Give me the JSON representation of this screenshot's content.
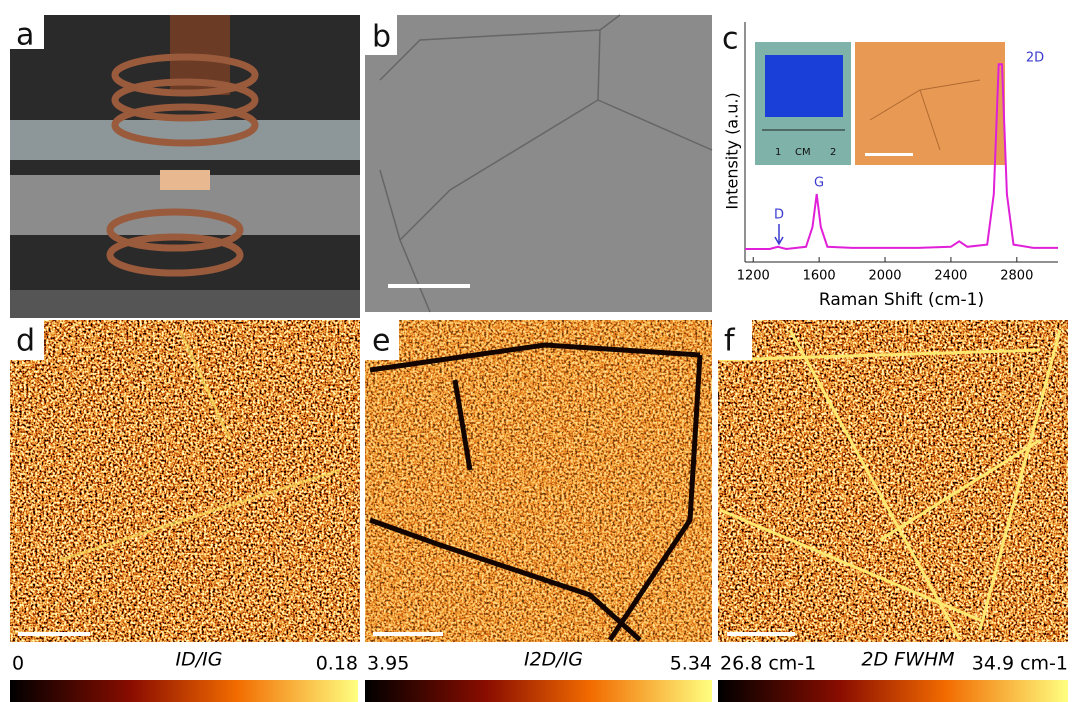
{
  "panels": [
    "a",
    "b",
    "c",
    "d",
    "e",
    "f"
  ],
  "inset_ruler": [
    "1",
    "CM",
    "2"
  ],
  "chart_data": {
    "type": "line",
    "xlabel": "Raman Shift (cm-1)",
    "ylabel": "Intensity (a.u.)",
    "x": [
      1150,
      1300,
      1350,
      1400,
      1520,
      1560,
      1585,
      1610,
      1650,
      1800,
      2000,
      2200,
      2400,
      2450,
      2500,
      2620,
      2660,
      2690,
      2710,
      2740,
      2780,
      2900,
      3050
    ],
    "values": [
      0.05,
      0.05,
      0.06,
      0.05,
      0.06,
      0.15,
      0.3,
      0.15,
      0.06,
      0.055,
      0.055,
      0.055,
      0.06,
      0.085,
      0.06,
      0.07,
      0.3,
      0.89,
      0.89,
      0.3,
      0.07,
      0.055,
      0.055
    ],
    "color": "#e020d8",
    "xlim": [
      1150,
      3050
    ],
    "ylim": [
      0,
      1
    ],
    "xticks": [
      1200,
      1600,
      2000,
      2400,
      2800
    ],
    "peak_labels": [
      "D",
      "G",
      "2D"
    ]
  },
  "colorbars": [
    {
      "min": "0",
      "label": "ID/IG",
      "max": "0.18"
    },
    {
      "min": "3.95",
      "label": "I2D/IG",
      "max": "5.34"
    },
    {
      "min": "26.8 cm-1",
      "label": "2D FWHM",
      "max": "34.9 cm-1"
    }
  ]
}
